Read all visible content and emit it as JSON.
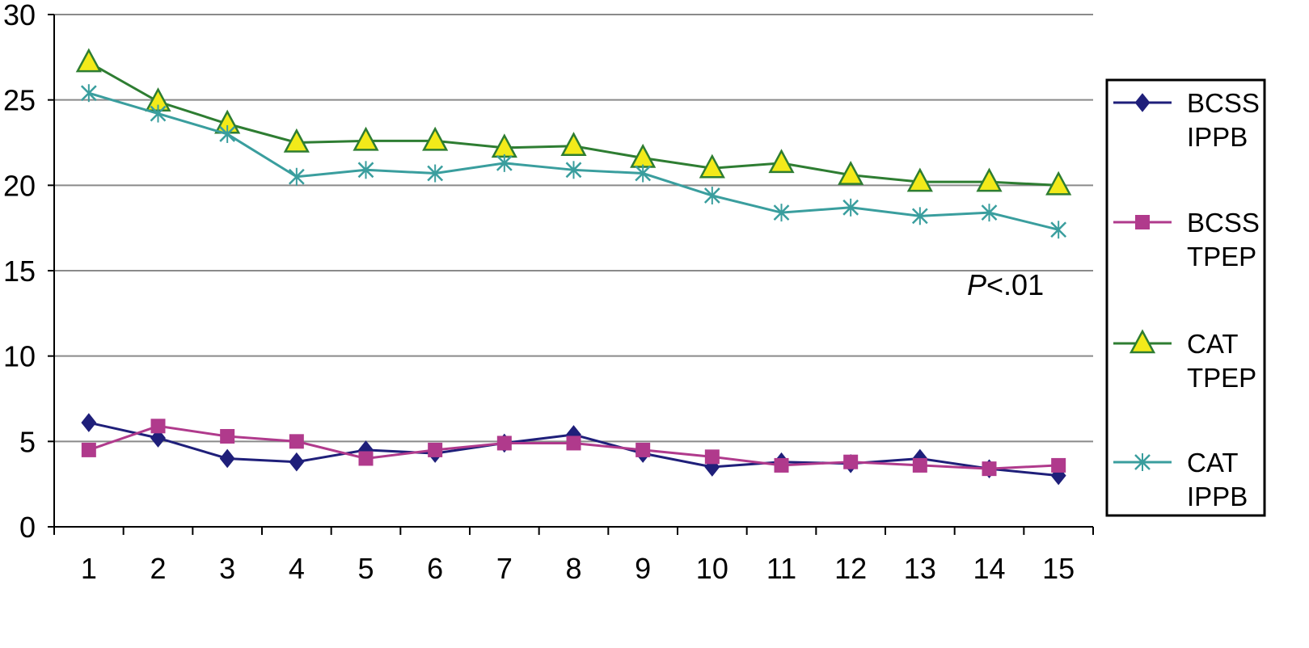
{
  "chart_data": {
    "type": "line",
    "title": "",
    "xlabel": "",
    "ylabel": "",
    "categories": [
      "1",
      "2",
      "3",
      "4",
      "5",
      "6",
      "7",
      "8",
      "9",
      "10",
      "11",
      "12",
      "13",
      "14",
      "15"
    ],
    "yticks": [
      "0",
      "5",
      "10",
      "15",
      "20",
      "25",
      "30"
    ],
    "ylim": [
      0,
      30
    ],
    "grid": true,
    "legend_position": "right",
    "annotation": {
      "italic": "P",
      "text": "<.01"
    },
    "series": [
      {
        "name": "BCSS IPPB",
        "name_lines": [
          "BCSS",
          "IPPB"
        ],
        "color": "#1f1f7a",
        "marker": "diamond",
        "values": [
          6.1,
          5.2,
          4.0,
          3.8,
          4.5,
          4.3,
          4.9,
          5.4,
          4.3,
          3.5,
          3.8,
          3.7,
          4.0,
          3.4,
          3.0
        ]
      },
      {
        "name": "BCSS TPEP",
        "name_lines": [
          "BCSS",
          "TPEP"
        ],
        "color": "#b03a8c",
        "marker": "square",
        "values": [
          4.5,
          5.9,
          5.3,
          5.0,
          4.0,
          4.5,
          4.9,
          4.9,
          4.5,
          4.1,
          3.6,
          3.8,
          3.6,
          3.4,
          3.6
        ]
      },
      {
        "name": "CAT TPEP",
        "name_lines": [
          "CAT",
          "TPEP"
        ],
        "color": "#2e7d32",
        "marker_fill": "#f2ea1a",
        "marker": "triangle",
        "values": [
          27.2,
          24.9,
          23.6,
          22.5,
          22.6,
          22.6,
          22.2,
          22.3,
          21.6,
          21.0,
          21.3,
          20.6,
          20.2,
          20.2,
          20.0
        ]
      },
      {
        "name": "CAT IPPB",
        "name_lines": [
          "CAT",
          "IPPB"
        ],
        "color": "#3a9e9e",
        "marker": "x-star",
        "values": [
          25.4,
          24.2,
          23.0,
          20.5,
          20.9,
          20.7,
          21.3,
          20.9,
          20.7,
          19.4,
          18.4,
          18.7,
          18.2,
          18.4,
          17.4
        ]
      }
    ]
  }
}
